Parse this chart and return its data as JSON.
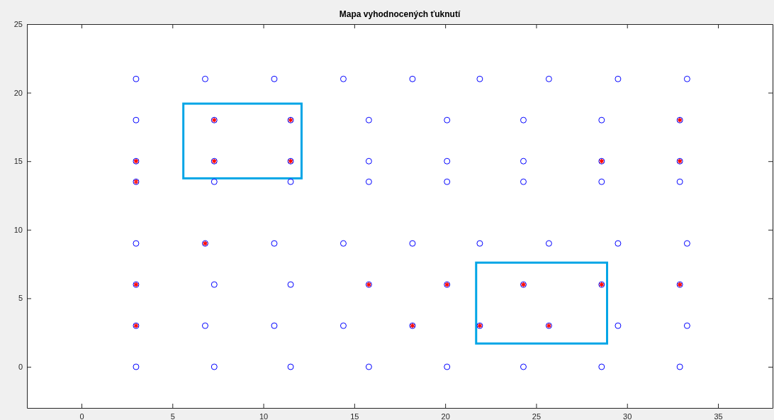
{
  "chart_data": {
    "type": "scatter",
    "title": "Mapa vyhodnocených ťuknutí",
    "xlim": [
      -3,
      38
    ],
    "xticks": [
      0,
      5,
      10,
      15,
      20,
      25,
      30,
      35
    ],
    "ylim": [
      -3,
      25
    ],
    "yticks": [
      0,
      5,
      10,
      15,
      20,
      25
    ],
    "grid": false,
    "series": [
      {
        "marker": "circle",
        "color": "#0000ff",
        "x": [
          3.0,
          6.8,
          10.6,
          14.4,
          18.2,
          21.9,
          25.7,
          29.5,
          33.3,
          3.0,
          7.3,
          11.5,
          15.8,
          20.1,
          24.3,
          28.6,
          32.9,
          3.0,
          7.3,
          11.5,
          15.8,
          20.1,
          24.3,
          28.6,
          32.9,
          3.0,
          7.3,
          11.5,
          15.8,
          20.1,
          24.3,
          28.6,
          32.9,
          3.0,
          6.8,
          10.6,
          14.4,
          18.2,
          21.9,
          25.7,
          29.5,
          33.3,
          3.0,
          7.3,
          11.5,
          15.8,
          20.1,
          24.3,
          28.6,
          32.9,
          3.0,
          6.8,
          10.6,
          14.4,
          18.2,
          21.9,
          25.7,
          29.5,
          33.3,
          3.0,
          7.3,
          11.5,
          15.8,
          20.1,
          24.3,
          28.6,
          32.9
        ],
        "values": [
          21,
          21,
          21,
          21,
          21,
          21,
          21,
          21,
          21,
          18,
          18,
          18,
          18,
          18,
          18,
          18,
          18,
          15,
          15,
          15,
          15,
          15,
          15,
          15,
          15,
          13.5,
          13.5,
          13.5,
          13.5,
          13.5,
          13.5,
          13.5,
          13.5,
          9,
          9,
          9,
          9,
          9,
          9,
          9,
          9,
          9,
          6,
          6,
          6,
          6,
          6,
          6,
          6,
          6,
          3,
          3,
          3,
          3,
          3,
          3,
          3,
          3,
          3,
          0,
          0,
          0,
          0,
          0,
          0,
          0,
          0
        ]
      },
      {
        "marker": "cross",
        "color": "#ff0000",
        "x": [
          7.3,
          11.5,
          32.9,
          3.0,
          7.3,
          11.5,
          28.6,
          32.9,
          3.0,
          6.8,
          3.0,
          15.8,
          20.1,
          24.3,
          28.6,
          32.9,
          3.0,
          18.2,
          21.9,
          25.7
        ],
        "values": [
          18,
          18,
          18,
          15,
          15,
          15,
          15,
          15,
          13.5,
          9,
          6,
          6,
          6,
          6,
          6,
          6,
          3,
          3,
          3,
          3
        ]
      }
    ]
  }
}
